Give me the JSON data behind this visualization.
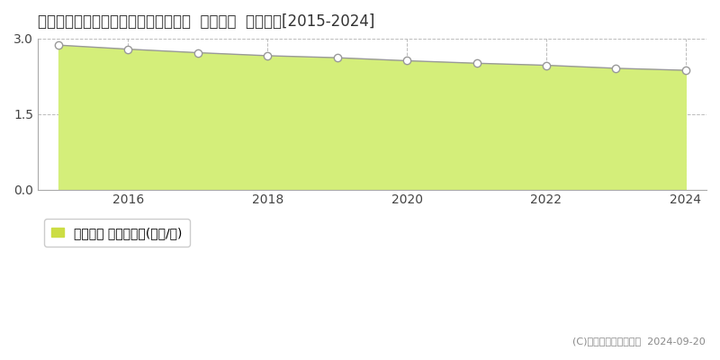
{
  "title": "青森県むつ市脇野沢本村１８７番２外  基準地価  地価推移[2015-2024]",
  "years": [
    2015,
    2016,
    2017,
    2018,
    2019,
    2020,
    2021,
    2022,
    2023,
    2024
  ],
  "values": [
    2.87,
    2.79,
    2.72,
    2.66,
    2.62,
    2.56,
    2.51,
    2.47,
    2.41,
    2.37
  ],
  "ylim": [
    0,
    3.0
  ],
  "yticks": [
    0,
    1.5,
    3
  ],
  "line_color": "#999999",
  "fill_color": "#d4ee7a",
  "fill_alpha": 1.0,
  "marker_color": "white",
  "marker_edge_color": "#999999",
  "marker_size": 6,
  "grid_color": "#bbbbbb",
  "grid_style": "--",
  "background_color": "#ffffff",
  "legend_label": "基準地価 平均嵪単価(万円/嵪)",
  "legend_color": "#ccdd44",
  "copyright_text": "(C)土地価格ドットコム  2024-09-20",
  "title_fontsize": 12,
  "axis_fontsize": 10,
  "legend_fontsize": 10
}
